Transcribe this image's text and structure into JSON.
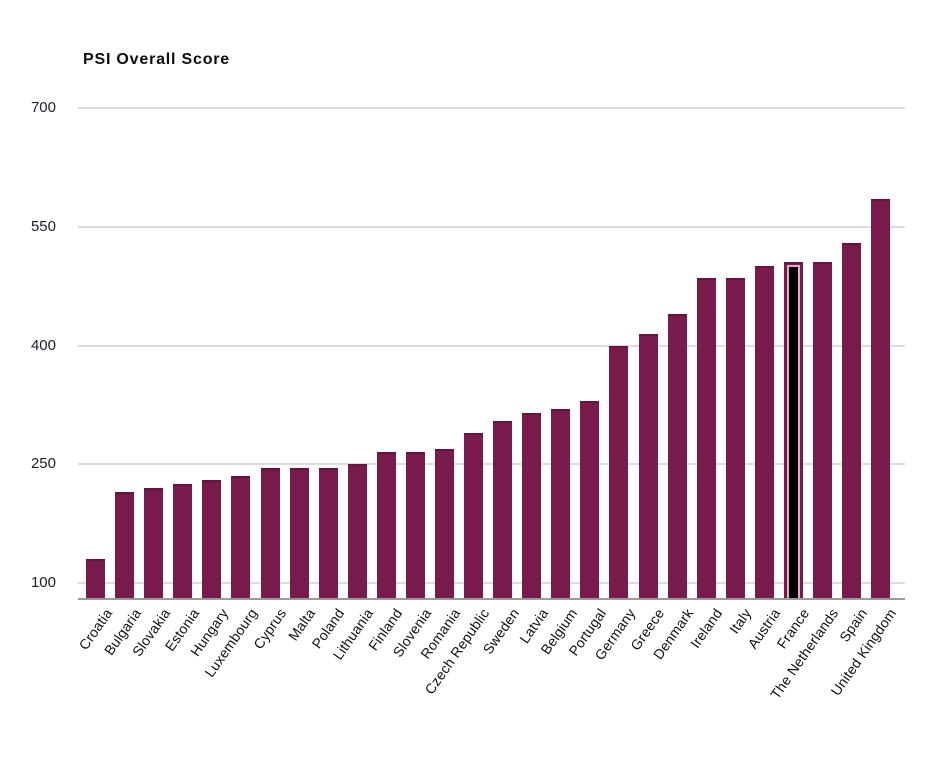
{
  "chart_data": {
    "type": "bar",
    "title": "PSI Overall Score",
    "xlabel": "",
    "ylabel": "",
    "categories": [
      "Croatia",
      "Bulgaria",
      "Slovakia",
      "Estonia",
      "Hungary",
      "Luxembourg",
      "Cyprus",
      "Malta",
      "Poland",
      "Lithuania",
      "Finland",
      "Slovenia",
      "Romania",
      "Czech Republic",
      "Sweden",
      "Latvia",
      "Belgium",
      "Portugal",
      "Germany",
      "Greece",
      "Denmark",
      "Ireland",
      "Italy",
      "Austria",
      "France",
      "The Netherlands",
      "Spain",
      "United Kingdom"
    ],
    "values": [
      130,
      215,
      220,
      225,
      230,
      235,
      245,
      245,
      245,
      250,
      265,
      265,
      270,
      290,
      305,
      315,
      320,
      330,
      400,
      415,
      440,
      485,
      485,
      500,
      505,
      505,
      530,
      585
    ],
    "highlighted_category": "France",
    "yticks": [
      100,
      250,
      400,
      550,
      700
    ],
    "ylim": [
      80,
      710
    ],
    "grid": "horizontal-gridlines",
    "legend": "none",
    "colors": {
      "bar": "#781a4c",
      "highlight_core": "#000000",
      "highlight_ring": "#ddaecb",
      "gridline": "#dcdcdc",
      "axis_line": "#9a9a9a",
      "text": "#101010"
    }
  }
}
